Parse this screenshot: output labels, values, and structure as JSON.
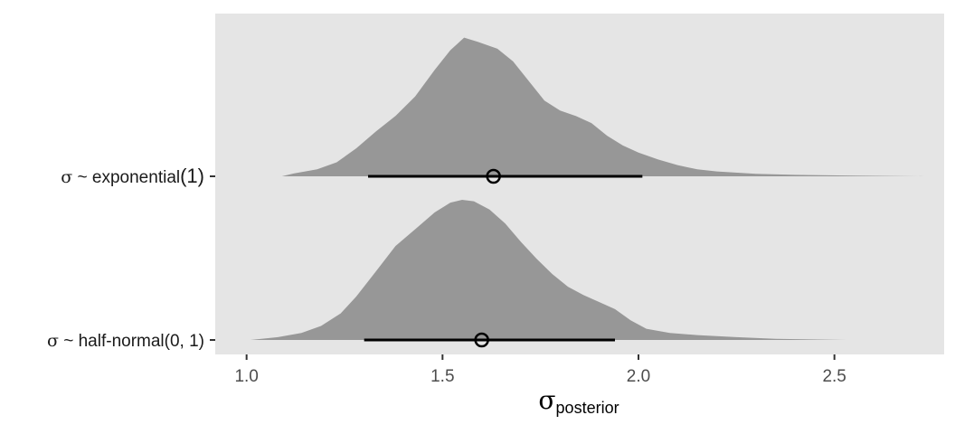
{
  "chart_data": {
    "type": "area",
    "chart_subtype": "halfeye (density + interval)",
    "title": "",
    "xlabel": {
      "symbol": "σ",
      "subscript": "posterior"
    },
    "ylabel": "",
    "xlim": [
      0.92,
      2.78
    ],
    "x_ticks": [
      1.0,
      1.5,
      2.0,
      2.5
    ],
    "x_tick_labels": [
      "1.0",
      "1.5",
      "2.0",
      "2.5"
    ],
    "grid": false,
    "legend": "none",
    "panel_background": "#e5e5e5",
    "density_fill": "#979797",
    "interval_color": "#000000",
    "categories": [
      {
        "label_symbol": "σ",
        "label_text": " ~ exponential",
        "label_arg": "(1)",
        "point": 1.63,
        "interval": [
          1.31,
          2.01
        ],
        "density": [
          [
            1.09,
            0.0
          ],
          [
            1.12,
            0.02
          ],
          [
            1.18,
            0.05
          ],
          [
            1.23,
            0.1
          ],
          [
            1.28,
            0.2
          ],
          [
            1.33,
            0.32
          ],
          [
            1.38,
            0.43
          ],
          [
            1.43,
            0.57
          ],
          [
            1.48,
            0.76
          ],
          [
            1.52,
            0.9
          ],
          [
            1.555,
            0.99
          ],
          [
            1.59,
            0.96
          ],
          [
            1.64,
            0.91
          ],
          [
            1.68,
            0.82
          ],
          [
            1.72,
            0.68
          ],
          [
            1.76,
            0.54
          ],
          [
            1.8,
            0.47
          ],
          [
            1.84,
            0.43
          ],
          [
            1.88,
            0.38
          ],
          [
            1.92,
            0.29
          ],
          [
            1.96,
            0.22
          ],
          [
            2.0,
            0.17
          ],
          [
            2.05,
            0.12
          ],
          [
            2.1,
            0.08
          ],
          [
            2.15,
            0.05
          ],
          [
            2.2,
            0.035
          ],
          [
            2.3,
            0.018
          ],
          [
            2.4,
            0.01
          ],
          [
            2.55,
            0.005
          ],
          [
            2.73,
            0.0
          ]
        ]
      },
      {
        "label_symbol": "σ",
        "label_text": " ~ half-normal(0, 1)",
        "label_arg": "",
        "point": 1.6,
        "interval": [
          1.3,
          1.94
        ],
        "density": [
          [
            1.01,
            0.0
          ],
          [
            1.08,
            0.02
          ],
          [
            1.14,
            0.05
          ],
          [
            1.19,
            0.1
          ],
          [
            1.24,
            0.19
          ],
          [
            1.28,
            0.31
          ],
          [
            1.33,
            0.49
          ],
          [
            1.38,
            0.67
          ],
          [
            1.43,
            0.79
          ],
          [
            1.48,
            0.91
          ],
          [
            1.52,
            0.98
          ],
          [
            1.55,
            1.0
          ],
          [
            1.58,
            0.99
          ],
          [
            1.62,
            0.93
          ],
          [
            1.66,
            0.83
          ],
          [
            1.7,
            0.7
          ],
          [
            1.74,
            0.58
          ],
          [
            1.78,
            0.47
          ],
          [
            1.82,
            0.38
          ],
          [
            1.86,
            0.32
          ],
          [
            1.9,
            0.27
          ],
          [
            1.94,
            0.22
          ],
          [
            1.98,
            0.14
          ],
          [
            2.02,
            0.08
          ],
          [
            2.08,
            0.05
          ],
          [
            2.15,
            0.035
          ],
          [
            2.25,
            0.02
          ],
          [
            2.35,
            0.008
          ],
          [
            2.53,
            0.0
          ]
        ]
      }
    ]
  }
}
